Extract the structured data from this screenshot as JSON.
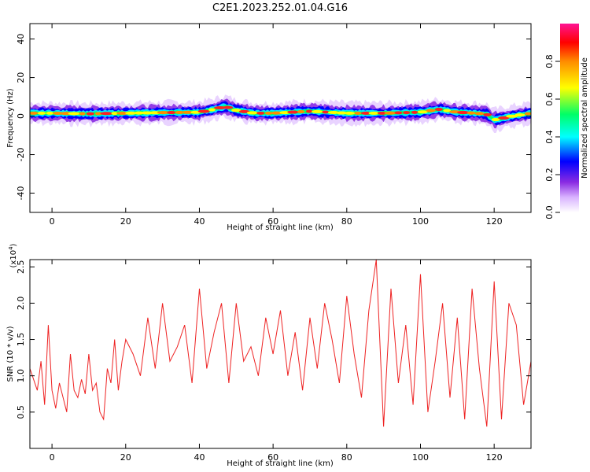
{
  "title": "C2E1.2023.252.01.04.G16",
  "chart_data": [
    {
      "type": "heatmap",
      "xlabel": "Height of straight line (km)",
      "ylabel": "Frequency (Hz)",
      "xlim": [
        -6,
        130
      ],
      "ylim": [
        -50,
        48
      ],
      "xticks": [
        0,
        20,
        40,
        60,
        80,
        100,
        120
      ],
      "yticks": [
        -40,
        -20,
        0,
        20,
        40
      ],
      "colorbar": {
        "label": "Normalized spectral amplitude",
        "range": [
          0.0,
          1.0
        ],
        "ticks": [
          "0.0",
          "0.2",
          "0.4",
          "0.6",
          "0.8"
        ],
        "colormap": [
          "#ffffff",
          "#d9b3ff",
          "#8a2be2",
          "#0000ff",
          "#00ffff",
          "#00ff66",
          "#ffff00",
          "#ff8c00",
          "#ff0000",
          "#ff1493"
        ]
      },
      "ridge_frequency": [
        [
          -6,
          1.5
        ],
        [
          0,
          1.5
        ],
        [
          10,
          1.2
        ],
        [
          20,
          1.5
        ],
        [
          30,
          1.8
        ],
        [
          40,
          2.0
        ],
        [
          44,
          3.5
        ],
        [
          47,
          5
        ],
        [
          50,
          3.0
        ],
        [
          55,
          1.5
        ],
        [
          60,
          1.5
        ],
        [
          70,
          2.5
        ],
        [
          80,
          1.5
        ],
        [
          90,
          1.5
        ],
        [
          100,
          2.0
        ],
        [
          105,
          3.5
        ],
        [
          110,
          2.0
        ],
        [
          115,
          1.5
        ],
        [
          118,
          1.0
        ],
        [
          120,
          -2.0
        ],
        [
          125,
          0.0
        ],
        [
          130,
          1.5
        ]
      ]
    },
    {
      "type": "line",
      "xlabel": "Height of straight line (km)",
      "ylabel": "SNR (10 * v/v)",
      "yscale_label": "(x10",
      "yscale_exp": "4",
      "yscale_close": ")",
      "xlim": [
        -6,
        130
      ],
      "ylim": [
        0.0,
        2.6
      ],
      "xticks": [
        0,
        20,
        40,
        60,
        80,
        100,
        120
      ],
      "yticks": [
        "0.5",
        "1.0",
        "1.5",
        "2.0",
        "2.5"
      ],
      "color": "#ee2222",
      "series": [
        {
          "x": [
            -6,
            -5,
            -4,
            -3,
            -2,
            -1,
            0,
            1,
            2,
            3,
            4,
            5,
            6,
            7,
            8,
            9,
            10,
            11,
            12,
            13,
            14,
            15,
            16,
            17,
            18,
            19,
            20,
            22,
            24,
            26,
            28,
            30,
            32,
            34,
            36,
            38,
            40,
            42,
            44,
            46,
            48,
            50,
            52,
            54,
            56,
            58,
            60,
            62,
            64,
            66,
            68,
            70,
            72,
            74,
            76,
            78,
            80,
            82,
            84,
            86,
            88,
            90,
            92,
            94,
            96,
            98,
            100,
            102,
            104,
            106,
            108,
            110,
            112,
            114,
            116,
            118,
            120,
            122,
            124,
            126,
            128,
            130
          ],
          "y": [
            1.1,
            0.95,
            0.8,
            1.2,
            0.6,
            1.7,
            0.8,
            0.55,
            0.9,
            0.7,
            0.5,
            1.3,
            0.8,
            0.7,
            0.95,
            0.75,
            1.3,
            0.8,
            0.9,
            0.5,
            0.4,
            1.1,
            0.9,
            1.5,
            0.8,
            1.2,
            1.5,
            1.3,
            1.0,
            1.8,
            1.1,
            2.0,
            1.2,
            1.4,
            1.7,
            0.9,
            2.2,
            1.1,
            1.6,
            2.0,
            0.9,
            2.0,
            1.2,
            1.4,
            1.0,
            1.8,
            1.3,
            1.9,
            1.0,
            1.6,
            0.8,
            1.8,
            1.1,
            2.0,
            1.5,
            0.9,
            2.1,
            1.3,
            0.7,
            1.9,
            2.6,
            0.3,
            2.2,
            0.9,
            1.7,
            0.6,
            2.4,
            0.5,
            1.2,
            2.0,
            0.7,
            1.8,
            0.4,
            2.2,
            1.1,
            0.3,
            2.3,
            0.4,
            2.0,
            1.7,
            0.6,
            1.2
          ]
        }
      ]
    }
  ]
}
